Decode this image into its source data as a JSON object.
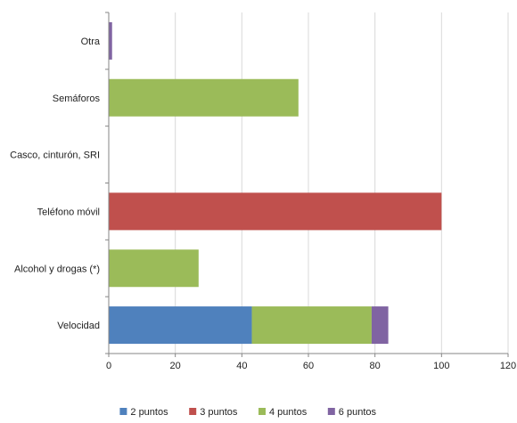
{
  "chart_data": {
    "type": "bar",
    "orientation": "horizontal",
    "stacked": true,
    "categories": [
      "Velocidad",
      "Alcohol y drogas (*)",
      "Teléfono móvil",
      "Casco, cinturón, SRI",
      "Semáforos",
      "Otra"
    ],
    "series": [
      {
        "name": "2 puntos",
        "color": "#4f81bd",
        "values": [
          43,
          0,
          0,
          0,
          0,
          0
        ]
      },
      {
        "name": "3 puntos",
        "color": "#c0504d",
        "values": [
          0,
          0,
          100,
          0,
          0,
          0
        ]
      },
      {
        "name": "4 puntos",
        "color": "#9bbb59",
        "values": [
          36,
          27,
          0,
          0,
          57,
          0
        ]
      },
      {
        "name": "6 puntos",
        "color": "#8064a2",
        "values": [
          5,
          0,
          0,
          0,
          0,
          1
        ]
      }
    ],
    "xlim": [
      0,
      120
    ],
    "xticks": [
      0,
      20,
      40,
      60,
      80,
      100,
      120
    ],
    "xgrid": true,
    "legend_position": "bottom"
  }
}
